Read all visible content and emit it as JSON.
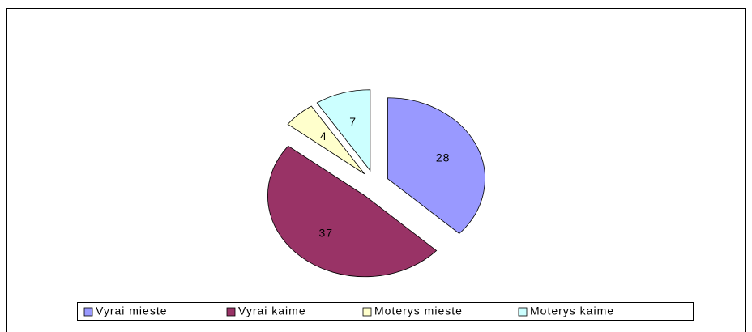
{
  "chart_data": {
    "type": "pie",
    "categories": [
      "Vyrai mieste",
      "Vyrai kaime",
      "Moterys mieste",
      "Moterys kaime"
    ],
    "values": [
      28,
      37,
      4,
      7
    ],
    "colors": [
      "#9999ff",
      "#993366",
      "#ffffcc",
      "#ccffff"
    ],
    "exploded": true,
    "legend": "bottom"
  }
}
